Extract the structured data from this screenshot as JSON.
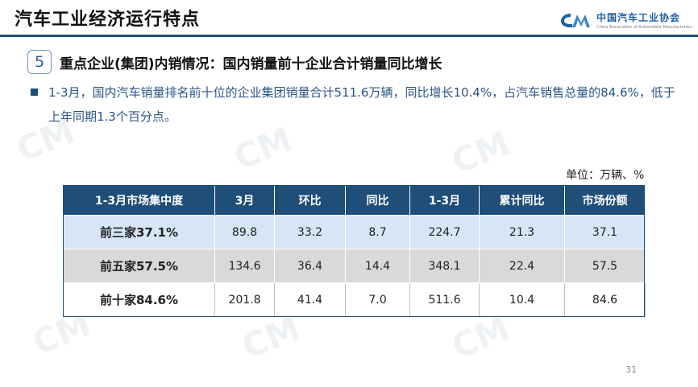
{
  "header": {
    "title": "汽车工业经济运行特点",
    "logo_cn": "中国汽车工业协会",
    "logo_en": "China Association of Automobile Manufacturers"
  },
  "section": {
    "number": "5",
    "title": "重点企业(集团)内销情况：国内销量前十企业合计销量同比增长"
  },
  "bullet": {
    "text": "1-3月，国内汽车销量排名前十位的企业集团销量合计511.6万辆，同比增长10.4%，占汽车销售总量的84.6%，低于上年同期1.3个百分点。"
  },
  "unit_label": "单位：万辆、%",
  "table": {
    "headers": [
      "1-3月市场集中度",
      "3月",
      "环比",
      "同比",
      "1-3月",
      "累计同比",
      "市场份额"
    ],
    "rows": [
      [
        "前三家37.1%",
        "89.8",
        "33.2",
        "8.7",
        "224.7",
        "21.3",
        "37.1"
      ],
      [
        "前五家57.5%",
        "134.6",
        "36.4",
        "14.4",
        "348.1",
        "22.4",
        "57.5"
      ],
      [
        "前十家84.6%",
        "201.8",
        "41.4",
        "7.0",
        "511.6",
        "10.4",
        "84.6"
      ]
    ]
  },
  "page_number": "31",
  "colors": {
    "header_bg": "#1f4e79",
    "row1_bg": "#d6e6f5",
    "row2_bg": "#d9d9d9",
    "text_blue": "#2b5486"
  }
}
